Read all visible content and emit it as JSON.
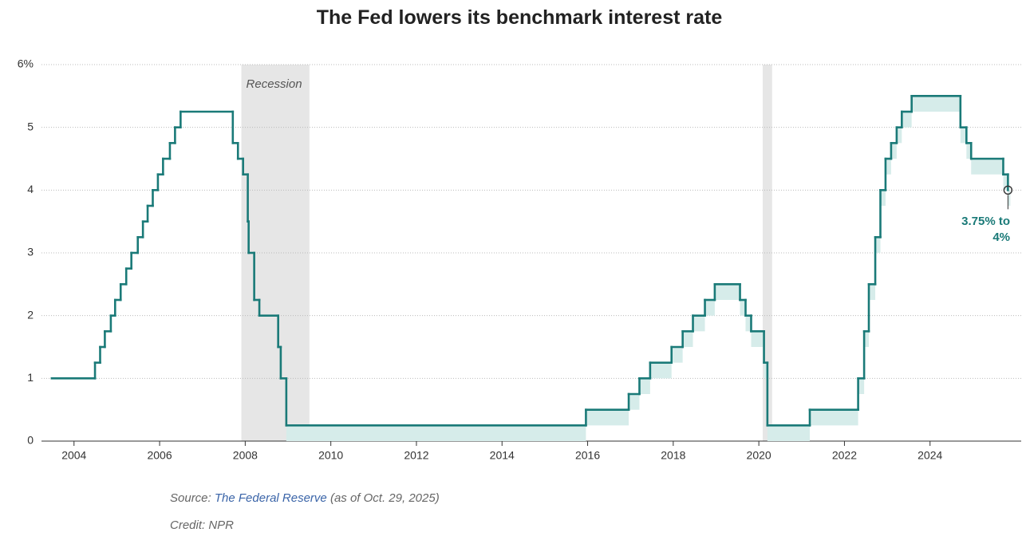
{
  "chart_data": {
    "type": "step",
    "title": "The Fed lowers its benchmark interest rate",
    "x": [
      2003.48,
      2004.49,
      2004.61,
      2004.72,
      2004.86,
      2004.96,
      2005.09,
      2005.22,
      2005.34,
      2005.49,
      2005.61,
      2005.72,
      2005.84,
      2005.96,
      2006.08,
      2006.24,
      2006.36,
      2006.49,
      2007.71,
      2007.83,
      2007.95,
      2008.06,
      2008.08,
      2008.21,
      2008.33,
      2008.77,
      2008.83,
      2008.96,
      2015.96,
      2016.96,
      2017.21,
      2017.46,
      2017.96,
      2018.22,
      2018.46,
      2018.74,
      2018.97,
      2019.56,
      2019.69,
      2019.82,
      2020.12,
      2020.2,
      2021.19,
      2022.32,
      2022.46,
      2022.57,
      2022.72,
      2022.84,
      2022.96,
      2023.09,
      2023.22,
      2023.34,
      2023.57,
      2024.71,
      2024.85,
      2024.96,
      2025.71,
      2025.82
    ],
    "values": [
      1,
      1.25,
      1.5,
      1.75,
      2,
      2.25,
      2.5,
      2.75,
      3,
      3.25,
      3.5,
      3.75,
      4,
      4.25,
      4.5,
      4.75,
      5,
      5.25,
      4.75,
      4.5,
      4.25,
      3.5,
      3,
      2.25,
      2,
      1.5,
      1,
      0.25,
      0.5,
      0.75,
      1,
      1.25,
      1.5,
      1.75,
      2,
      2.25,
      2.5,
      2.25,
      2,
      1.75,
      1.25,
      0.25,
      0.5,
      1,
      1.75,
      2.5,
      3.25,
      4,
      4.5,
      4.75,
      5,
      5.25,
      5.5,
      5,
      4.75,
      4.5,
      4.25,
      4
    ],
    "lower": [
      null,
      null,
      null,
      null,
      null,
      null,
      null,
      null,
      null,
      null,
      null,
      null,
      null,
      null,
      null,
      null,
      null,
      null,
      null,
      null,
      null,
      null,
      null,
      null,
      null,
      null,
      null,
      0,
      0.25,
      0.5,
      0.75,
      1,
      1.25,
      1.5,
      1.75,
      2,
      2.25,
      2,
      1.75,
      1.5,
      1,
      0,
      0.25,
      0.75,
      1.5,
      2.25,
      3,
      3.75,
      4.25,
      4.5,
      4.75,
      5,
      5.25,
      4.75,
      4.5,
      4.25,
      4,
      3.75
    ],
    "color": "#1a7a78",
    "band_color": "#d6ecea",
    "recessions": [
      [
        2007.91,
        2009.5
      ],
      [
        2020.09,
        2020.31
      ]
    ],
    "recession_label": "Recession",
    "annotation": "3.75% to 4%",
    "xlim": [
      2003.24,
      2026.13
    ],
    "ylim": [
      0,
      6
    ],
    "xticks": [
      2004,
      2006,
      2008,
      2010,
      2012,
      2014,
      2016,
      2018,
      2020,
      2022,
      2024
    ],
    "yticks": [
      0,
      1,
      2,
      3,
      4,
      5,
      {
        "value": 6,
        "label": "6%"
      }
    ],
    "grid": true
  },
  "footer": {
    "source_prefix": "Source:",
    "source_link": "The Federal Reserve",
    "source_suffix": "(as of Oct. 29, 2025)",
    "credit": "Credit: NPR"
  }
}
